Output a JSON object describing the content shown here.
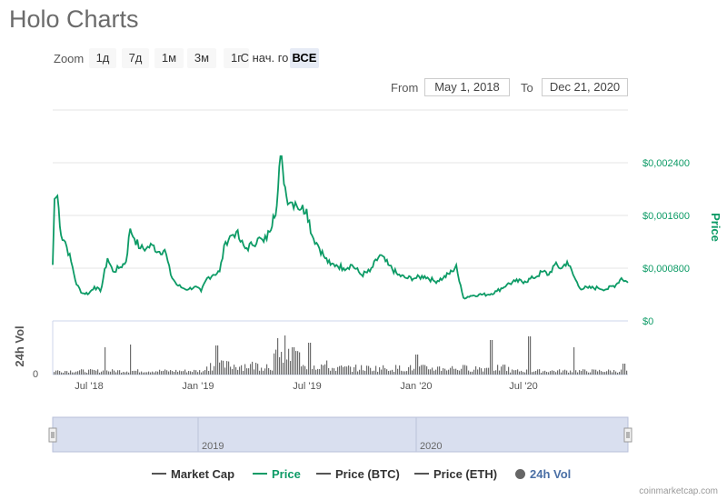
{
  "title": "Holo Charts",
  "toolbar": {
    "zoom_label": "Zoom",
    "zoom_buttons": [
      "1д",
      "7д",
      "1м",
      "3м",
      "1г",
      "С нач. го",
      "ВСЕ"
    ],
    "active_zoom": "ВСЕ",
    "from_label": "From",
    "from_value": "May 1, 2018",
    "to_label": "To",
    "to_value": "Dec 21, 2020"
  },
  "colors": {
    "price": "#0d9b66",
    "volume": "#6d6d6d",
    "navigator_fill": "#d9dfef",
    "market_cap": "#555555"
  },
  "chart_data": [
    {
      "type": "line",
      "title": "",
      "ylabel": "Price",
      "ylim": [
        0,
        0.0024
      ],
      "y_ticks": [
        "$0",
        "$0,000800",
        "$0,001600",
        "$0,002400"
      ],
      "x_ticks": [
        "Jul '18",
        "Jan '19",
        "Jul '19",
        "Jan '20",
        "Jul '20"
      ],
      "x_range": [
        "2018-05-01",
        "2020-12-21"
      ],
      "series": [
        {
          "name": "Price",
          "x": [
            "2018-05-01",
            "2018-05-04",
            "2018-05-09",
            "2018-05-15",
            "2018-05-22",
            "2018-06-01",
            "2018-06-10",
            "2018-06-20",
            "2018-07-01",
            "2018-07-10",
            "2018-07-20",
            "2018-08-01",
            "2018-08-10",
            "2018-08-20",
            "2018-09-01",
            "2018-09-08",
            "2018-09-15",
            "2018-09-25",
            "2018-10-05",
            "2018-10-15",
            "2018-10-25",
            "2018-11-05",
            "2018-11-15",
            "2018-11-25",
            "2018-12-05",
            "2018-12-15",
            "2018-12-25",
            "2019-01-05",
            "2019-01-15",
            "2019-01-25",
            "2019-02-05",
            "2019-02-15",
            "2019-02-25",
            "2019-03-05",
            "2019-03-12",
            "2019-03-20",
            "2019-04-01",
            "2019-04-10",
            "2019-04-20",
            "2019-04-30",
            "2019-05-06",
            "2019-05-12",
            "2019-05-18",
            "2019-05-22",
            "2019-05-28",
            "2019-06-04",
            "2019-06-12",
            "2019-06-22",
            "2019-07-01",
            "2019-07-10",
            "2019-07-20",
            "2019-08-01",
            "2019-08-10",
            "2019-08-20",
            "2019-09-01",
            "2019-09-15",
            "2019-10-01",
            "2019-10-15",
            "2019-11-01",
            "2019-11-15",
            "2019-12-01",
            "2019-12-15",
            "2020-01-01",
            "2020-01-15",
            "2020-02-01",
            "2020-02-15",
            "2020-03-01",
            "2020-03-08",
            "2020-03-13",
            "2020-03-20",
            "2020-04-01",
            "2020-04-15",
            "2020-05-01",
            "2020-05-15",
            "2020-06-01",
            "2020-06-15",
            "2020-07-01",
            "2020-07-15",
            "2020-08-01",
            "2020-08-10",
            "2020-08-20",
            "2020-09-01",
            "2020-09-10",
            "2020-09-20",
            "2020-10-01",
            "2020-10-15",
            "2020-11-01",
            "2020-11-15",
            "2020-12-01",
            "2020-12-10",
            "2020-12-21"
          ],
          "values": [
            0.00085,
            0.00185,
            0.0019,
            0.0013,
            0.0012,
            0.0009,
            0.00055,
            0.00042,
            0.00042,
            0.00052,
            0.00045,
            0.00095,
            0.00075,
            0.0008,
            0.0009,
            0.0014,
            0.00125,
            0.0011,
            0.0011,
            0.00115,
            0.00105,
            0.00108,
            0.0007,
            0.00055,
            0.0005,
            0.00048,
            0.00052,
            0.00045,
            0.00065,
            0.0007,
            0.00075,
            0.0012,
            0.0013,
            0.00135,
            0.0012,
            0.0011,
            0.00115,
            0.00125,
            0.0012,
            0.00135,
            0.0016,
            0.00175,
            0.0025,
            0.0023,
            0.0019,
            0.0018,
            0.0018,
            0.0017,
            0.0017,
            0.0013,
            0.00115,
            0.00095,
            0.00085,
            0.00085,
            0.0008,
            0.00085,
            0.0007,
            0.00075,
            0.001,
            0.00085,
            0.0007,
            0.00065,
            0.00065,
            0.00068,
            0.0006,
            0.00065,
            0.00075,
            0.00085,
            0.0006,
            0.00035,
            0.00038,
            0.0004,
            0.0004,
            0.00045,
            0.00055,
            0.0006,
            0.0006,
            0.00065,
            0.00075,
            0.0007,
            0.00085,
            0.0008,
            0.0009,
            0.0007,
            0.0005,
            0.0005,
            0.0005,
            0.00048,
            0.00055,
            0.00065,
            0.00058
          ]
        }
      ]
    },
    {
      "type": "bar",
      "title": "",
      "ylabel": "24h Vol",
      "y_ticks": [
        "0"
      ],
      "series": [
        {
          "name": "24h Vol"
        }
      ]
    }
  ],
  "navigator": {
    "labels": [
      "2019",
      "2020"
    ]
  },
  "legend": [
    {
      "label": "Market Cap",
      "kind": "line",
      "color": "#555555",
      "active": false
    },
    {
      "label": "Price",
      "kind": "line",
      "color": "#0d9b66",
      "active": true
    },
    {
      "label": "Price (BTC)",
      "kind": "line",
      "color": "#555555",
      "active": false
    },
    {
      "label": "Price (ETH)",
      "kind": "line",
      "color": "#555555",
      "active": false
    },
    {
      "label": "24h Vol",
      "kind": "dot",
      "color": "#666666",
      "active": true
    }
  ],
  "credit": "coinmarketcap.com"
}
